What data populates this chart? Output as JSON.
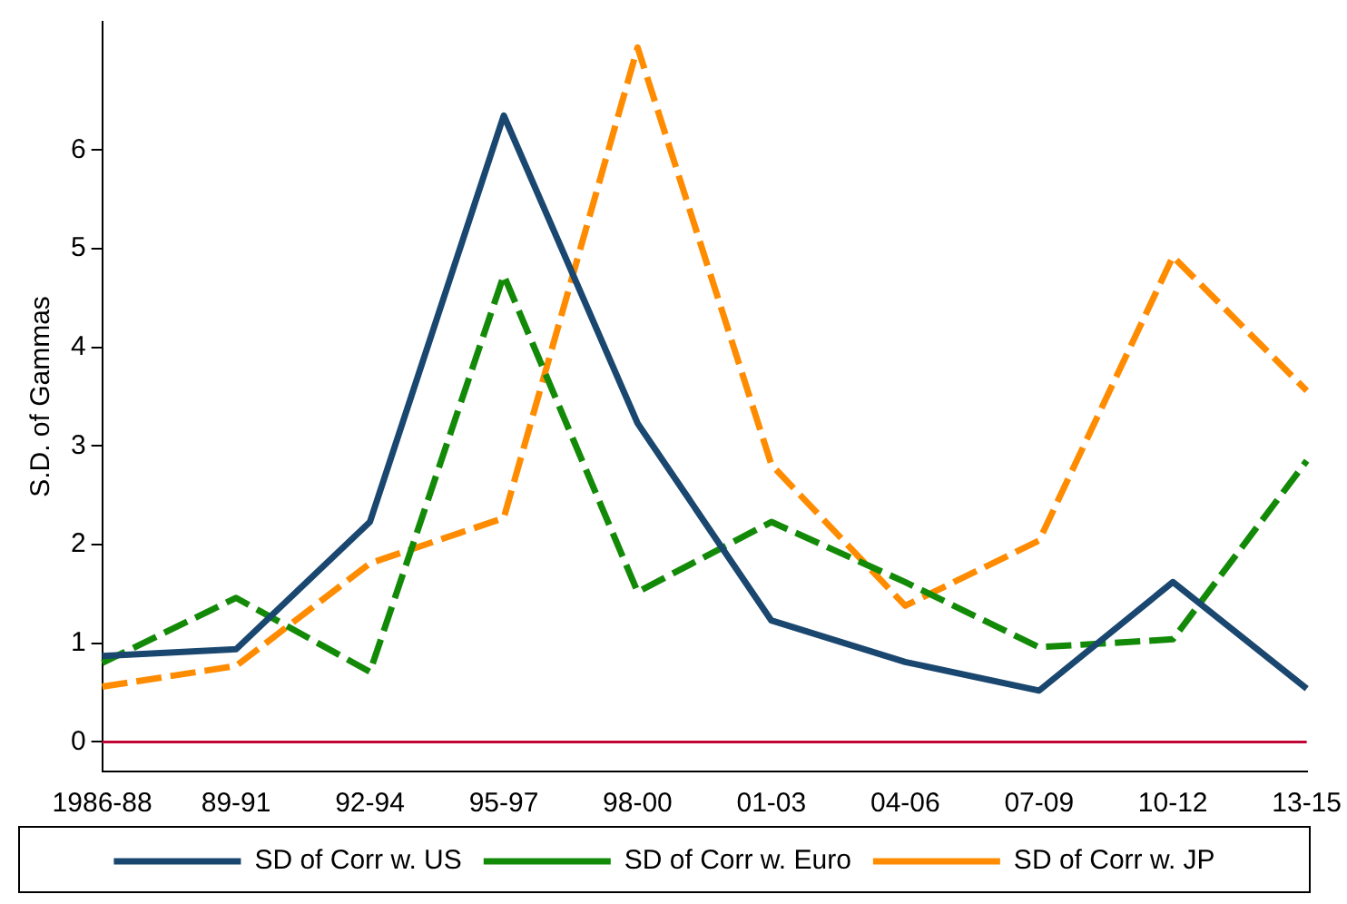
{
  "chart_data": {
    "type": "line",
    "ylabel": "S.D. of Gammas",
    "categories": [
      "1986-88",
      "89-91",
      "92-94",
      "95-97",
      "98-00",
      "01-03",
      "04-06",
      "07-09",
      "10-12",
      "13-15"
    ],
    "series": [
      {
        "name": "SD of Corr w. US",
        "color": "#1a476f",
        "line_style": "solid",
        "values": [
          0.87,
          0.94,
          2.23,
          6.35,
          3.23,
          1.23,
          0.81,
          0.52,
          1.62,
          0.54
        ]
      },
      {
        "name": "SD of Corr w. Euro",
        "color": "#138a07",
        "line_style": "dashed",
        "values": [
          0.8,
          1.46,
          0.71,
          4.73,
          1.52,
          2.23,
          1.62,
          0.96,
          1.04,
          2.85
        ]
      },
      {
        "name": "SD of Corr w. JP",
        "color": "#ff8c00",
        "line_style": "dashed",
        "values": [
          0.56,
          0.77,
          1.81,
          2.27,
          7.04,
          2.81,
          1.38,
          2.04,
          4.92,
          3.56
        ]
      }
    ],
    "ylim": [
      -0.3,
      7.3
    ],
    "yticks": [
      0,
      1,
      2,
      3,
      4,
      5,
      6
    ],
    "grid": false,
    "legend": "bottom",
    "marker": "none",
    "ref_lines": [
      {
        "axis": "y",
        "value": 0,
        "color": "#c10534"
      }
    ]
  }
}
